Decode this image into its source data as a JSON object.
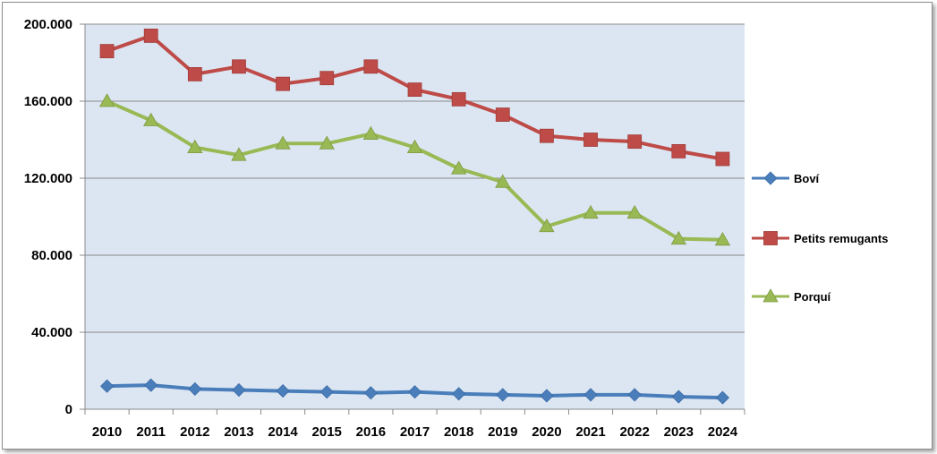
{
  "chart_data": {
    "type": "line",
    "x": [
      "2010",
      "2011",
      "2012",
      "2013",
      "2014",
      "2015",
      "2016",
      "2017",
      "2018",
      "2019",
      "2020",
      "2021",
      "2022",
      "2023",
      "2024"
    ],
    "ylim": [
      0,
      200000
    ],
    "yticks": [
      0,
      40000,
      80000,
      120000,
      160000,
      200000
    ],
    "ytick_labels": [
      "0",
      "40.000",
      "80.000",
      "120.000",
      "160.000",
      "200.000"
    ],
    "grid": true,
    "plot_background": "#dce6f2",
    "legend_position": "right",
    "series": [
      {
        "name": "Boví",
        "color": "#4a7ebb",
        "marker": "diamond",
        "values": [
          12000,
          12500,
          10500,
          10000,
          9500,
          9000,
          8500,
          9000,
          8000,
          7500,
          7000,
          7500,
          7500,
          6500,
          6000
        ]
      },
      {
        "name": "Petits remugants",
        "color": "#be4b48",
        "marker": "square",
        "values": [
          186000,
          194000,
          174000,
          178000,
          169000,
          172000,
          178000,
          166000,
          161000,
          153000,
          142000,
          140000,
          139000,
          134000,
          130000
        ]
      },
      {
        "name": "Porquí",
        "color": "#98b954",
        "marker": "triangle",
        "values": [
          160000,
          150000,
          136000,
          132000,
          138000,
          138000,
          143000,
          136000,
          125000,
          118000,
          95000,
          102000,
          102000,
          88500,
          88000
        ]
      }
    ]
  }
}
